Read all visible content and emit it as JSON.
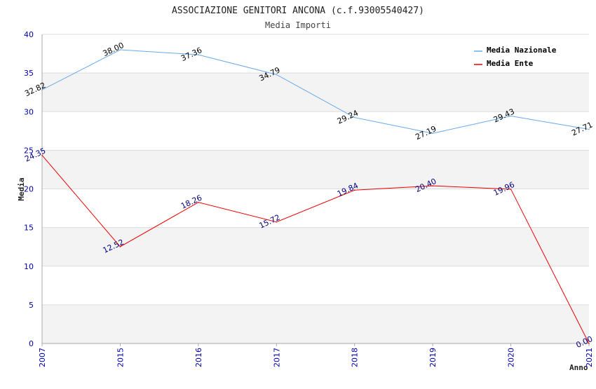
{
  "chart_data": {
    "type": "line",
    "title": "ASSOCIAZIONE GENITORI ANCONA (c.f.93005540427)",
    "subtitle": "Media Importi",
    "xlabel": "Anno",
    "ylabel": "Media",
    "categories": [
      "2007",
      "2015",
      "2016",
      "2017",
      "2018",
      "2019",
      "2020",
      "2021"
    ],
    "ylim": [
      0,
      40
    ],
    "yticks": [
      "0",
      "5",
      "10",
      "15",
      "20",
      "25",
      "30",
      "35",
      "40"
    ],
    "grid": "horizontal alternating bands",
    "legend_position": "top-right",
    "series": [
      {
        "name": "Media Nazionale",
        "color": "#66aaee",
        "label_color": "#000000",
        "values": [
          32.82,
          38.0,
          37.36,
          34.79,
          29.24,
          27.19,
          29.43,
          27.71
        ],
        "labels": [
          "32.82",
          "38.00",
          "37.36",
          "34.79",
          "29.24",
          "27.19",
          "29.43",
          "27.71"
        ]
      },
      {
        "name": "Media Ente",
        "color": "#ee0000",
        "label_color": "#000080",
        "values": [
          24.35,
          12.52,
          18.26,
          15.72,
          19.84,
          20.4,
          19.96,
          0.0
        ],
        "labels": [
          "24.35",
          "12.52",
          "18.26",
          "15.72",
          "19.84",
          "20.40",
          "19.96",
          "0.00"
        ]
      }
    ]
  },
  "colors": {
    "band": "#f3f3f3",
    "grid": "#dddddd",
    "axis": "#aaaaaa",
    "tick_text": "#0000aa"
  }
}
